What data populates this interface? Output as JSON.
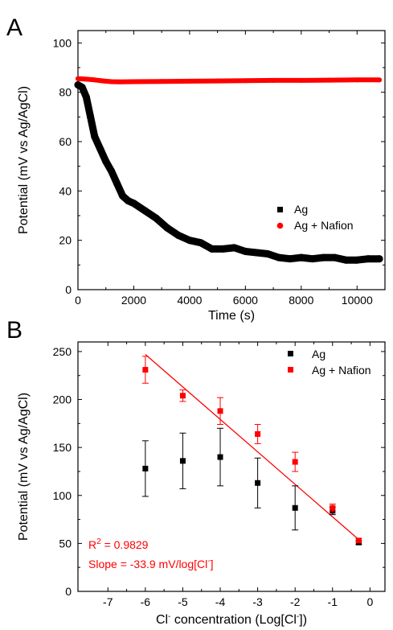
{
  "chart_data": [
    {
      "panel": "A",
      "type": "scatter",
      "xlabel": "Time (s)",
      "ylabel": "Potential (mV vs Ag/AgCl)",
      "xlim": [
        0,
        11000
      ],
      "ylim": [
        0,
        105
      ],
      "xticks": [
        0,
        2000,
        4000,
        6000,
        8000,
        10000
      ],
      "yticks": [
        0,
        20,
        40,
        60,
        80,
        100
      ],
      "legend": "right-lower",
      "series": [
        {
          "name": "Ag",
          "color": "#000000",
          "marker": "square",
          "x": [
            0,
            150,
            300,
            450,
            600,
            800,
            1000,
            1200,
            1400,
            1600,
            1800,
            2000,
            2400,
            2800,
            3200,
            3600,
            4000,
            4400,
            4800,
            5200,
            5600,
            6000,
            6400,
            6800,
            7200,
            7600,
            8000,
            8400,
            8800,
            9200,
            9600,
            10000,
            10400,
            10800
          ],
          "y": [
            83,
            82,
            78,
            70,
            62,
            57,
            52,
            48,
            43,
            38,
            36,
            35,
            32,
            29,
            25,
            22,
            20,
            19,
            16.5,
            16.5,
            17,
            15.5,
            15,
            14.5,
            13,
            12.5,
            13,
            12.5,
            13,
            13,
            12,
            12,
            12.5,
            12.5
          ]
        },
        {
          "name": "Ag + Nafion",
          "color": "#ff0000",
          "marker": "circle",
          "x": [
            0,
            300,
            600,
            900,
            1200,
            1500,
            2000,
            3000,
            4000,
            5000,
            6000,
            7000,
            8000,
            9000,
            10000,
            10800
          ],
          "y": [
            85.5,
            85.3,
            85,
            84.6,
            84.3,
            84.2,
            84.3,
            84.4,
            84.5,
            84.6,
            84.7,
            84.8,
            84.8,
            84.9,
            85,
            85
          ]
        }
      ]
    },
    {
      "panel": "B",
      "type": "scatter",
      "xlabel_main": "Cl",
      "xlabel_sup": "-",
      "xlabel_mid": " concentration (Log[Cl",
      "xlabel_sup2": "-",
      "xlabel_end": "])",
      "ylabel": "Potential (mV vs Ag/AgCl)",
      "xlim": [
        -7.8,
        0.4
      ],
      "ylim": [
        0,
        260
      ],
      "xticks": [
        -7,
        -6,
        -5,
        -4,
        -3,
        -2,
        -1,
        0
      ],
      "yticks": [
        0,
        50,
        100,
        150,
        200,
        250
      ],
      "legend": "top-right",
      "series": [
        {
          "name": "Ag",
          "color": "#000000",
          "marker": "square",
          "x": [
            -6,
            -5,
            -4,
            -3,
            -2,
            -1,
            -0.3
          ],
          "y": [
            128,
            136,
            140,
            113,
            87,
            84,
            51
          ],
          "err": [
            29,
            29,
            30,
            26,
            23,
            4,
            2
          ]
        },
        {
          "name": "Ag + Nafion",
          "color": "#ff0000",
          "marker": "square",
          "x": [
            -6,
            -5,
            -4,
            -3,
            -2,
            -1,
            -0.3
          ],
          "y": [
            231,
            204,
            188,
            164,
            135,
            87,
            53
          ],
          "err": [
            14,
            6,
            14,
            10,
            10,
            4,
            2
          ]
        }
      ],
      "fit": {
        "color": "#ff0000",
        "x": [
          -6,
          -0.3
        ],
        "y": [
          247,
          54
        ]
      },
      "annotations": {
        "r2_prefix": "R",
        "r2_sup": "2",
        "r2_value": " = 0.9829",
        "slope_prefix": "Slope = -33.9 mV/log[Cl",
        "slope_sup": "-",
        "slope_suffix": "]"
      }
    }
  ],
  "panel_letters": [
    "A",
    "B"
  ]
}
